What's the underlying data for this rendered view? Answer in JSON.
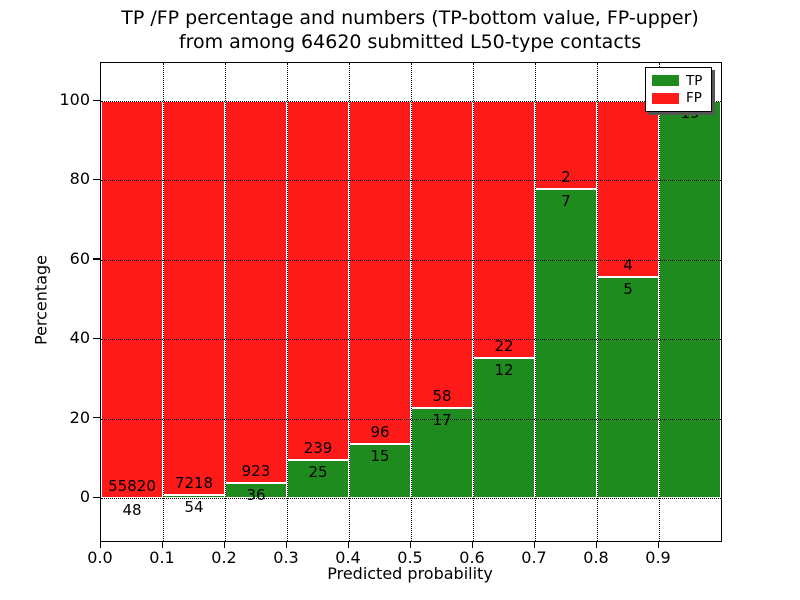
{
  "chart_data": {
    "type": "bar",
    "stacked": true,
    "unit": "percent",
    "title_line1": "TP /FP percentage and numbers (TP-bottom value, FP-upper)",
    "title_line2": "from among 64620 submitted L50-type contacts",
    "total_submitted_contacts": 64620,
    "xlabel": "Predicted probability",
    "ylabel": "Percentage",
    "x_tick_labels": [
      "0.0",
      "0.1",
      "0.2",
      "0.3",
      "0.4",
      "0.5",
      "0.6",
      "0.7",
      "0.8",
      "0.9"
    ],
    "y_tick_values": [
      0,
      20,
      40,
      60,
      80,
      100
    ],
    "xlim": [
      0.0,
      1.0
    ],
    "ylim": [
      -10.8,
      109.8
    ],
    "grid": "dotted-black-on",
    "legend": {
      "position": "upper-right",
      "shadow": true,
      "entries": [
        {
          "label": "TP",
          "color": "#1f8b1f"
        },
        {
          "label": "FP",
          "color": "#ff1a1a"
        }
      ]
    },
    "colors": {
      "tp": "#1f8b1f",
      "fp": "#ff1a1a",
      "grid": "#000000",
      "background": "#ffffff"
    },
    "bins": [
      {
        "x_range": [
          0.0,
          0.1
        ],
        "tp_count": 48,
        "fp_count": 55820,
        "tp_percent": 0.09
      },
      {
        "x_range": [
          0.1,
          0.2
        ],
        "tp_count": 54,
        "fp_count": 7218,
        "tp_percent": 0.74
      },
      {
        "x_range": [
          0.2,
          0.3
        ],
        "tp_count": 36,
        "fp_count": 923,
        "tp_percent": 3.75
      },
      {
        "x_range": [
          0.3,
          0.4
        ],
        "tp_count": 25,
        "fp_count": 239,
        "tp_percent": 9.47
      },
      {
        "x_range": [
          0.4,
          0.5
        ],
        "tp_count": 15,
        "fp_count": 96,
        "tp_percent": 13.51
      },
      {
        "x_range": [
          0.5,
          0.6
        ],
        "tp_count": 17,
        "fp_count": 58,
        "tp_percent": 22.67
      },
      {
        "x_range": [
          0.6,
          0.7
        ],
        "tp_count": 12,
        "fp_count": 22,
        "tp_percent": 35.29
      },
      {
        "x_range": [
          0.7,
          0.8
        ],
        "tp_count": 7,
        "fp_count": 2,
        "tp_percent": 77.78
      },
      {
        "x_range": [
          0.8,
          0.9
        ],
        "tp_count": 5,
        "fp_count": 4,
        "tp_percent": 55.56
      },
      {
        "x_range": [
          0.9,
          1.0
        ],
        "tp_count": 19,
        "fp_count": null,
        "tp_percent": 100.0
      }
    ]
  }
}
